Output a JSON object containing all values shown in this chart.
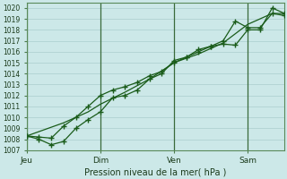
{
  "xlabel": "Pression niveau de la mer( hPa )",
  "background_color": "#cce8e8",
  "grid_color": "#aacece",
  "line_color": "#1a5c1a",
  "vline_color": "#3a6a3a",
  "xlim": [
    0,
    84
  ],
  "ylim": [
    1007,
    1020.5
  ],
  "yticks": [
    1007,
    1008,
    1009,
    1010,
    1011,
    1012,
    1013,
    1014,
    1015,
    1016,
    1017,
    1018,
    1019,
    1020
  ],
  "xtick_positions": [
    0,
    24,
    48,
    72
  ],
  "xtick_labels": [
    "Jeu",
    "Dim",
    "Ven",
    "Sam"
  ],
  "vline_positions": [
    0,
    24,
    48,
    72
  ],
  "series": [
    {
      "x": [
        0,
        4,
        8,
        12,
        16,
        20,
        24,
        28,
        32,
        36,
        40,
        44,
        48,
        52,
        56,
        60,
        64,
        68,
        72,
        76,
        80,
        84
      ],
      "y": [
        1008.3,
        1008.2,
        1008.1,
        1009.2,
        1010.0,
        1011.0,
        1012.0,
        1012.5,
        1012.8,
        1013.2,
        1013.8,
        1014.2,
        1015.0,
        1015.5,
        1016.0,
        1016.5,
        1017.0,
        1018.8,
        1018.2,
        1018.2,
        1019.5,
        1019.3
      ],
      "marker": "+"
    },
    {
      "x": [
        0,
        4,
        8,
        12,
        16,
        20,
        24,
        28,
        32,
        36,
        40,
        44,
        48,
        52,
        56,
        60,
        64,
        68,
        72,
        76,
        80,
        84
      ],
      "y": [
        1008.3,
        1008.0,
        1007.5,
        1007.8,
        1009.0,
        1009.8,
        1010.5,
        1011.8,
        1012.0,
        1012.5,
        1013.5,
        1014.0,
        1015.2,
        1015.5,
        1016.2,
        1016.5,
        1016.7,
        1016.6,
        1018.0,
        1018.0,
        1020.0,
        1019.5
      ],
      "marker": "+"
    },
    {
      "x": [
        0,
        12,
        20,
        24,
        32,
        40,
        48,
        56,
        64,
        72,
        80,
        84
      ],
      "y": [
        1008.3,
        1009.5,
        1010.5,
        1011.2,
        1012.3,
        1013.5,
        1015.0,
        1015.8,
        1016.8,
        1018.5,
        1019.5,
        1019.5
      ],
      "marker": null
    }
  ]
}
